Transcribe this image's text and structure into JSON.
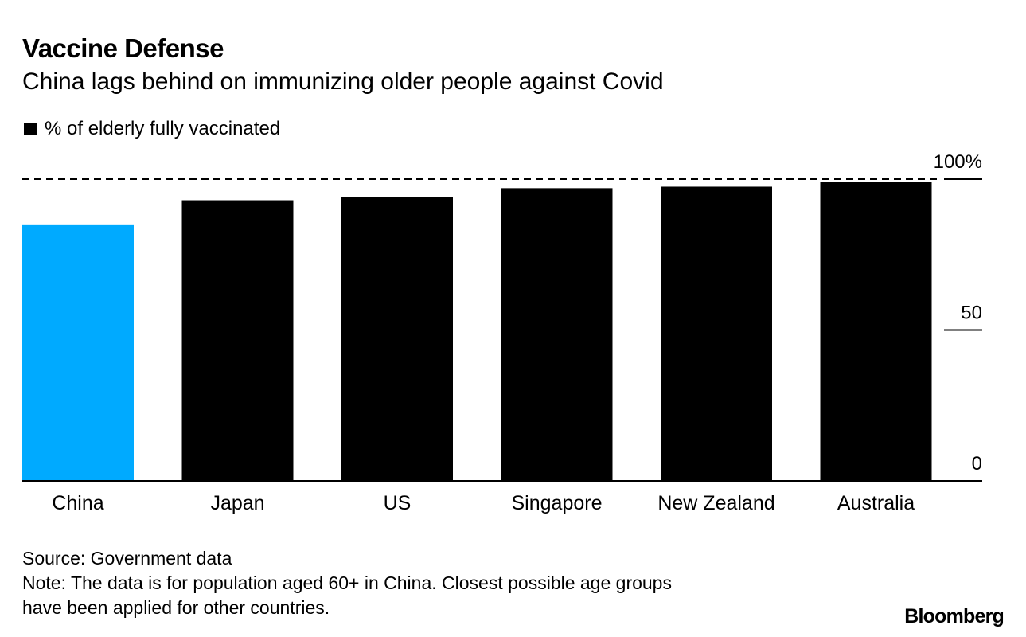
{
  "title": "Vaccine Defense",
  "subtitle": "China lags behind on immunizing older people against Covid",
  "legend": {
    "label": "% of elderly fully vaccinated",
    "color": "#000000"
  },
  "chart_data": {
    "type": "bar",
    "categories": [
      "China",
      "Japan",
      "US",
      "Singapore",
      "New Zealand",
      "Australia"
    ],
    "values": [
      85,
      93,
      94,
      97,
      97.5,
      99
    ],
    "colors": [
      "#00aaff",
      "#000000",
      "#000000",
      "#000000",
      "#000000",
      "#000000"
    ],
    "ylim": [
      0,
      100
    ],
    "yticks": [
      {
        "value": 0,
        "label": "0"
      },
      {
        "value": 50,
        "label": "50"
      },
      {
        "value": 100,
        "label": "100%"
      }
    ],
    "reference_line": {
      "value": 100,
      "style": "dashed"
    },
    "ylabel": "% of elderly fully vaccinated",
    "xlabel": ""
  },
  "footer": {
    "source": "Source: Government data",
    "note_line1": "Note: The data is for population aged 60+ in China. Closest possible age groups",
    "note_line2": "have been applied for other countries."
  },
  "brand": "Bloomberg"
}
